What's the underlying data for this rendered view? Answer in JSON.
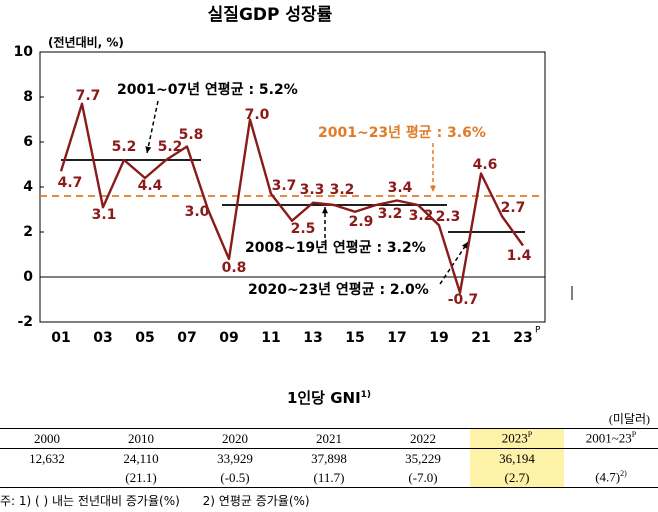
{
  "chart_data": {
    "type": "line",
    "title": "실질GDP 성장률",
    "y_axis_label": "(전년대비, %)",
    "categories": [
      "01",
      null,
      "03",
      null,
      "05",
      null,
      "07",
      null,
      "09",
      null,
      "11",
      null,
      "13",
      null,
      "15",
      null,
      "17",
      null,
      "19",
      null,
      "21",
      null,
      "23"
    ],
    "latest_marker": "P",
    "values": [
      4.7,
      7.7,
      3.1,
      5.2,
      4.4,
      5.2,
      5.8,
      3.0,
      0.8,
      7.0,
      3.7,
      2.5,
      3.3,
      3.2,
      2.9,
      3.2,
      3.4,
      3.2,
      2.3,
      -0.7,
      4.6,
      2.7,
      1.4
    ],
    "value_labels": [
      "4.7",
      "7.7",
      "3.1",
      "5.2",
      "4.4",
      "5.2",
      "5.8",
      "3.0",
      "0.8",
      "7.0",
      "3.7",
      "2.5",
      "3.3",
      "3.2",
      "2.9",
      "3.2",
      "3.4",
      "3.2",
      "2.3",
      "-0.7",
      "4.6",
      "2.7",
      "1.4"
    ],
    "color": "#8b1a1a",
    "ylim": [
      -2,
      10
    ],
    "yticks": [
      -2,
      0,
      2,
      4,
      6,
      8,
      10
    ],
    "reference_lines": [
      {
        "label": "2001~07년 연평균 : 5.2%",
        "value": 5.2,
        "color": "#000000"
      },
      {
        "label": "2008~19년 연평균 : 3.2%",
        "value": 3.2,
        "color": "#000000"
      },
      {
        "label": "2020~23년 연평균 : 2.0%",
        "value": 2.0,
        "color": "#000000"
      },
      {
        "label": "2001~23년 평균 : 3.6%",
        "value": 3.6,
        "color": "#e07b28"
      }
    ]
  },
  "table": {
    "title": "1인당 GNI",
    "title_note": "1)",
    "unit": "(미달러)",
    "header": [
      {
        "text": "2000"
      },
      {
        "text": "2010"
      },
      {
        "text": "2020"
      },
      {
        "text": "2021"
      },
      {
        "text": "2022"
      },
      {
        "text": "2023",
        "sup": "P"
      },
      {
        "text": "2001~23",
        "sup": "P"
      }
    ],
    "rows": [
      [
        "12,632",
        "24,110",
        "33,929",
        "37,898",
        "35,229",
        "36,194",
        null
      ],
      [
        null,
        "(21.1)",
        "(-0.5)",
        "(11.7)",
        "(-7.0)",
        "(2.7)",
        {
          "text": "(4.7)",
          "sup": "2)"
        }
      ]
    ],
    "footnote": "주: 1) ( ) 내는 전년대비 증가율(%)      2) 연평균 증가율(%)"
  }
}
